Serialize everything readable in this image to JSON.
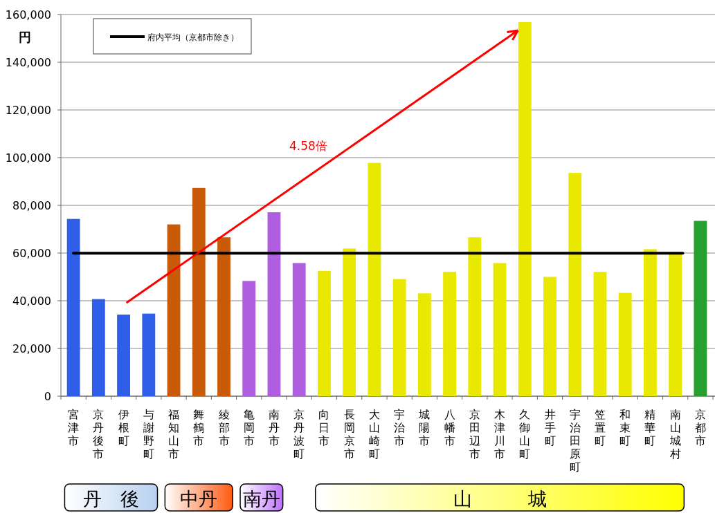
{
  "chart_data": {
    "type": "bar",
    "ylabel": "円",
    "categories": [
      "宮津市",
      "京丹後市",
      "伊根町",
      "与謝野町",
      "福知山市",
      "舞鶴市",
      "綾部市",
      "亀岡市",
      "南丹市",
      "京丹波町",
      "向日市",
      "長岡京市",
      "大山崎町",
      "宇治市",
      "城陽市",
      "八幡市",
      "京田辺市",
      "木津川市",
      "久御山町",
      "井手町",
      "宇治田原町",
      "笠置町",
      "和束町",
      "精華町",
      "南山城村",
      "京都市"
    ],
    "values": [
      74300,
      40700,
      34200,
      34600,
      72000,
      87300,
      66600,
      48300,
      77100,
      55800,
      52500,
      61900,
      97800,
      49100,
      43100,
      52100,
      66600,
      55800,
      156800,
      50000,
      93600,
      52100,
      43300,
      61600,
      60200,
      73500
    ],
    "colors": [
      "#2f5ee8",
      "#2f5ee8",
      "#2f5ee8",
      "#2f5ee8",
      "#c85a08",
      "#c85a08",
      "#c85a08",
      "#b05ee0",
      "#b05ee0",
      "#b05ee0",
      "#e8e800",
      "#e8e800",
      "#e8e800",
      "#e8e800",
      "#e8e800",
      "#e8e800",
      "#e8e800",
      "#e8e800",
      "#e8e800",
      "#e8e800",
      "#e8e800",
      "#e8e800",
      "#e8e800",
      "#e8e800",
      "#e8e800",
      "#28a030"
    ],
    "ylim": [
      0,
      160000
    ],
    "yticks": [
      {
        "value": 0,
        "label": "0"
      },
      {
        "value": 20000,
        "label": "20,000"
      },
      {
        "value": 40000,
        "label": "40,000"
      },
      {
        "value": 60000,
        "label": "60,000"
      },
      {
        "value": 80000,
        "label": "80,000"
      },
      {
        "value": 100000,
        "label": "100,000"
      },
      {
        "value": 120000,
        "label": "120,000"
      },
      {
        "value": 140000,
        "label": "140,000"
      },
      {
        "value": 160000,
        "label": "160,000"
      }
    ],
    "grid": "y",
    "legend": "top left",
    "ref_lines": [
      {
        "axis": "y",
        "value": 59900,
        "label": "府内平均（京都市除き）",
        "color": "#000000"
      }
    ],
    "annotations": [
      "4.58倍",
      "丹　後",
      "中丹",
      "南丹",
      "山　　　城"
    ]
  }
}
